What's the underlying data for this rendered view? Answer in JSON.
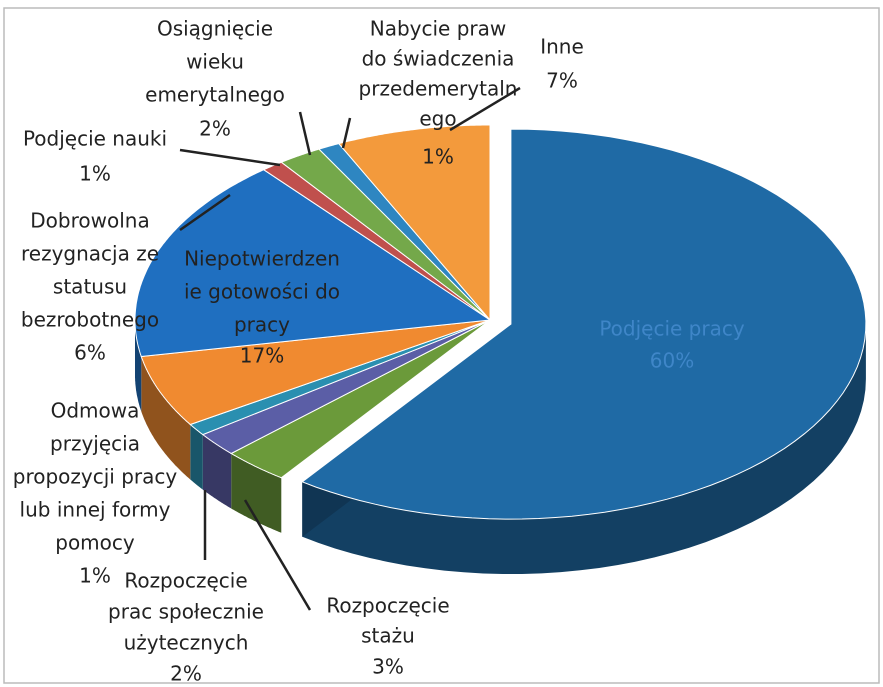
{
  "chart_data": {
    "type": "pie",
    "labels": [
      [
        "Podjęcie pracy"
      ],
      [
        "Rozpoczęcie",
        "stażu"
      ],
      [
        "Rozpoczęcie",
        "prac społecznie",
        "użytecznych"
      ],
      [
        "Odmowa",
        "przyjęcia",
        "propozycji pracy",
        "lub innej formy",
        "pomocy"
      ],
      [
        "Dobrowolna",
        "rezygnacja ze",
        "statusu",
        "bezrobotnego"
      ],
      [
        "Niepotwierdzen",
        "ie gotowości do",
        "pracy"
      ],
      [
        "Podjęcie nauki"
      ],
      [
        "Osiągnięcie",
        "wieku",
        "emerytalnego"
      ],
      [
        "Nabycie praw",
        "do świadczenia",
        "przedemerytaln",
        "ego"
      ],
      [
        "Inne"
      ]
    ],
    "values": [
      60,
      3,
      2,
      1,
      6,
      17,
      1,
      2,
      1,
      7
    ],
    "value_labels": [
      "60%",
      "3%",
      "2%",
      "1%",
      "6%",
      "17%",
      "1%",
      "2%",
      "1%",
      "7%"
    ],
    "colors": [
      "#1f6aa5",
      "#6b9a3a",
      "#5b5ea6",
      "#2a8fb0",
      "#f08a30",
      "#1f6fc0",
      "#c0504d",
      "#74a84a",
      "#2e86c1",
      "#f39a3c"
    ]
  }
}
